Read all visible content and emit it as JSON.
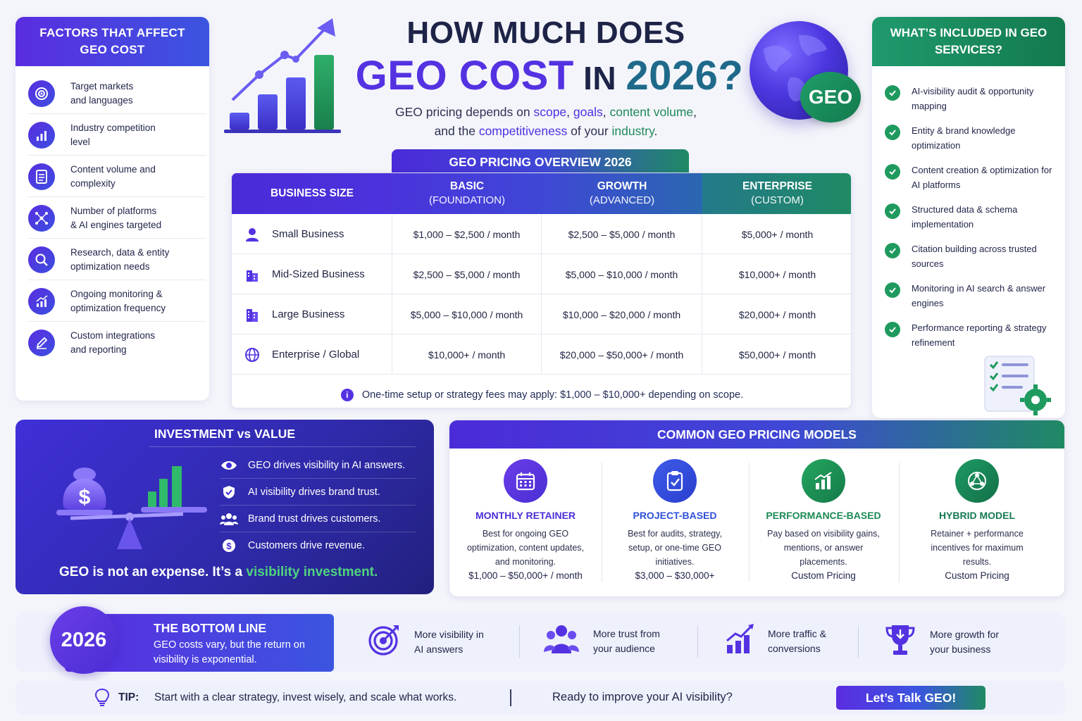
{
  "title": {
    "line1": "HOW MUCH DOES",
    "geo_cost": "GEO COST",
    "in": " IN ",
    "year": "2026?"
  },
  "subtitle": {
    "p1": "GEO pricing depends on ",
    "k1": "scope",
    "c1": ", ",
    "k2": "goals",
    "c2": ", ",
    "k3": "content volume",
    "c3": ",",
    "p2": "and the ",
    "k4": "competitiveness",
    "p3": " of your ",
    "k5": "industry",
    "p4": "."
  },
  "globe_badge": "GEO",
  "factors": {
    "title": "FACTORS THAT AFFECT GEO COST",
    "items": [
      {
        "label": "Target markets\nand languages",
        "icon": "target-icon"
      },
      {
        "label": "Industry competition\nlevel",
        "icon": "bar-chart-icon"
      },
      {
        "label": "Content volume and\ncomplexity",
        "icon": "document-icon"
      },
      {
        "label": "Number of platforms\n& AI engines targeted",
        "icon": "network-icon"
      },
      {
        "label": "Research, data & entity\noptimization needs",
        "icon": "magnifier-icon"
      },
      {
        "label": "Ongoing monitoring &\noptimization frequency",
        "icon": "growth-chart-icon"
      },
      {
        "label": "Custom integrations\nand reporting",
        "icon": "pen-icon"
      }
    ]
  },
  "pricing": {
    "tab": "GEO PRICING OVERVIEW 2026",
    "headers": [
      {
        "title": "BUSINESS SIZE",
        "sub": ""
      },
      {
        "title": "BASIC",
        "sub": "(FOUNDATION)"
      },
      {
        "title": "GROWTH",
        "sub": "(ADVANCED)"
      },
      {
        "title": "ENTERPRISE",
        "sub": "(CUSTOM)"
      }
    ],
    "rows": [
      {
        "name": "Small Business",
        "icon": "person-icon",
        "basic": "$1,000 – $2,500 / month",
        "growth": "$2,500 – $5,000 / month",
        "enterprise": "$5,000+ / month"
      },
      {
        "name": "Mid-Sized Business",
        "icon": "building-icon",
        "basic": "$2,500 – $5,000 / month",
        "growth": "$5,000 – $10,000 / month",
        "enterprise": "$10,000+ / month"
      },
      {
        "name": "Large Business",
        "icon": "building-icon",
        "basic": "$5,000 – $10,000 / month",
        "growth": "$10,000 – $20,000 / month",
        "enterprise": "$20,000+ / month"
      },
      {
        "name": "Enterprise / Global",
        "icon": "globe-icon",
        "basic": "$10,000+ / month",
        "growth": "$20,000 – $50,000+ / month",
        "enterprise": "$50,000+ / month"
      }
    ],
    "note": "One-time setup or strategy fees may apply: $1,000 – $10,000+ depending on scope."
  },
  "included": {
    "title": "WHAT’S INCLUDED IN GEO SERVICES?",
    "items": [
      "AI-visibility audit & opportunity mapping",
      "Entity & brand knowledge optimization",
      "Content creation & optimization for AI platforms",
      "Structured data & schema implementation",
      "Citation building across trusted sources",
      "Monitoring in AI search & answer engines",
      "Performance reporting & strategy refinement"
    ]
  },
  "investment": {
    "title": "INVESTMENT vs VALUE",
    "items": [
      {
        "text": "GEO drives visibility in AI answers.",
        "icon": "eye-icon"
      },
      {
        "text": "AI visibility drives brand trust.",
        "icon": "shield-icon"
      },
      {
        "text": "Brand trust drives customers.",
        "icon": "people-icon"
      },
      {
        "text": "Customers drive revenue.",
        "icon": "dollar-coin-icon"
      }
    ],
    "footer_a": "GEO is not an expense. It’s a ",
    "footer_b": "visibility investment."
  },
  "models": {
    "title": "COMMON GEO PRICING MODELS",
    "items": [
      {
        "name": "MONTHLY RETAINER",
        "desc": "Best for ongoing GEO optimization, content updates, and monitoring.",
        "price": "$1,000 – $50,000+ / month",
        "color": "#4b2fd8",
        "icon": "calendar-icon"
      },
      {
        "name": "PROJECT-BASED",
        "desc": "Best for audits, strategy, setup, or one-time GEO initiatives.",
        "price": "$3,000 – $30,000+",
        "color": "#2f50d8",
        "icon": "clipboard-icon"
      },
      {
        "name": "PERFORMANCE-BASED",
        "desc": "Pay based on visibility gains, mentions, or answer placements.",
        "price": "Custom Pricing",
        "color": "#1c8a54",
        "icon": "growth-chart-icon"
      },
      {
        "name": "HYBRID MODEL",
        "desc": "Retainer + performance incentives for maximum results.",
        "price": "Custom Pricing",
        "color": "#157a50",
        "icon": "hybrid-network-icon"
      }
    ]
  },
  "bottom_line": {
    "year": "2026",
    "title": "THE BOTTOM LINE",
    "desc": "GEO costs vary, but the return on visibility is exponential.",
    "benefits": [
      {
        "text": "More visibility in\nAI answers",
        "icon": "target-icon"
      },
      {
        "text": "More trust from\nyour audience",
        "icon": "people-icon"
      },
      {
        "text": "More traffic &\nconversions",
        "icon": "growth-chart-icon"
      },
      {
        "text": "More growth for\nyour business",
        "icon": "trophy-icon"
      }
    ]
  },
  "tip": {
    "label": "TIP:",
    "text": "Start with a clear strategy, invest wisely, and scale what works.",
    "question": "Ready to improve your AI visibility?",
    "cta": "Let’s Talk GEO!"
  },
  "colors": {
    "purple": "#5432e2",
    "blue": "#3b55e0",
    "green": "#1f8a5a",
    "navy": "#1e2447"
  }
}
